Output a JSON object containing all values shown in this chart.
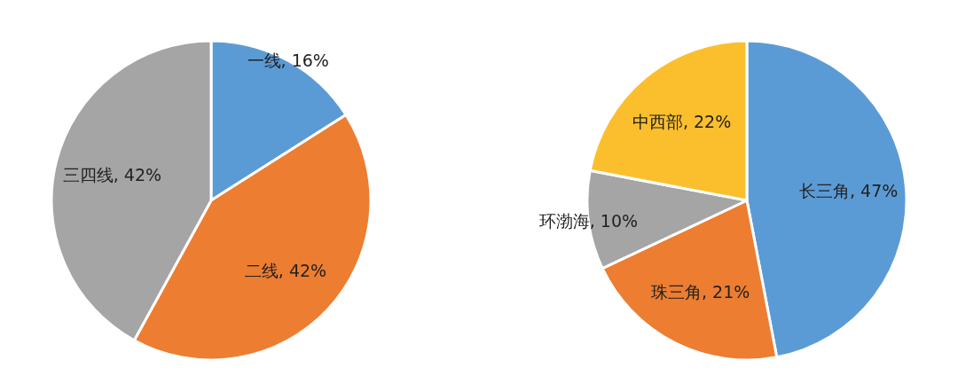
{
  "chart_data": [
    {
      "type": "pie",
      "categories": [
        "一线",
        "二线",
        "三四线"
      ],
      "values": [
        16,
        42,
        42
      ],
      "colors": [
        "#5b9bd5",
        "#ed7d31",
        "#a5a5a5"
      ],
      "value_labels": [
        "16%",
        "42%",
        "42%"
      ]
    },
    {
      "type": "pie",
      "categories": [
        "长三角",
        "珠三角",
        "环渤海",
        "中西部"
      ],
      "values": [
        47,
        21,
        10,
        22
      ],
      "colors": [
        "#5b9bd5",
        "#ed7d31",
        "#a5a5a5",
        "#fbbf2e"
      ],
      "value_labels": [
        "47%",
        "21%",
        "10%",
        "22%"
      ]
    }
  ]
}
